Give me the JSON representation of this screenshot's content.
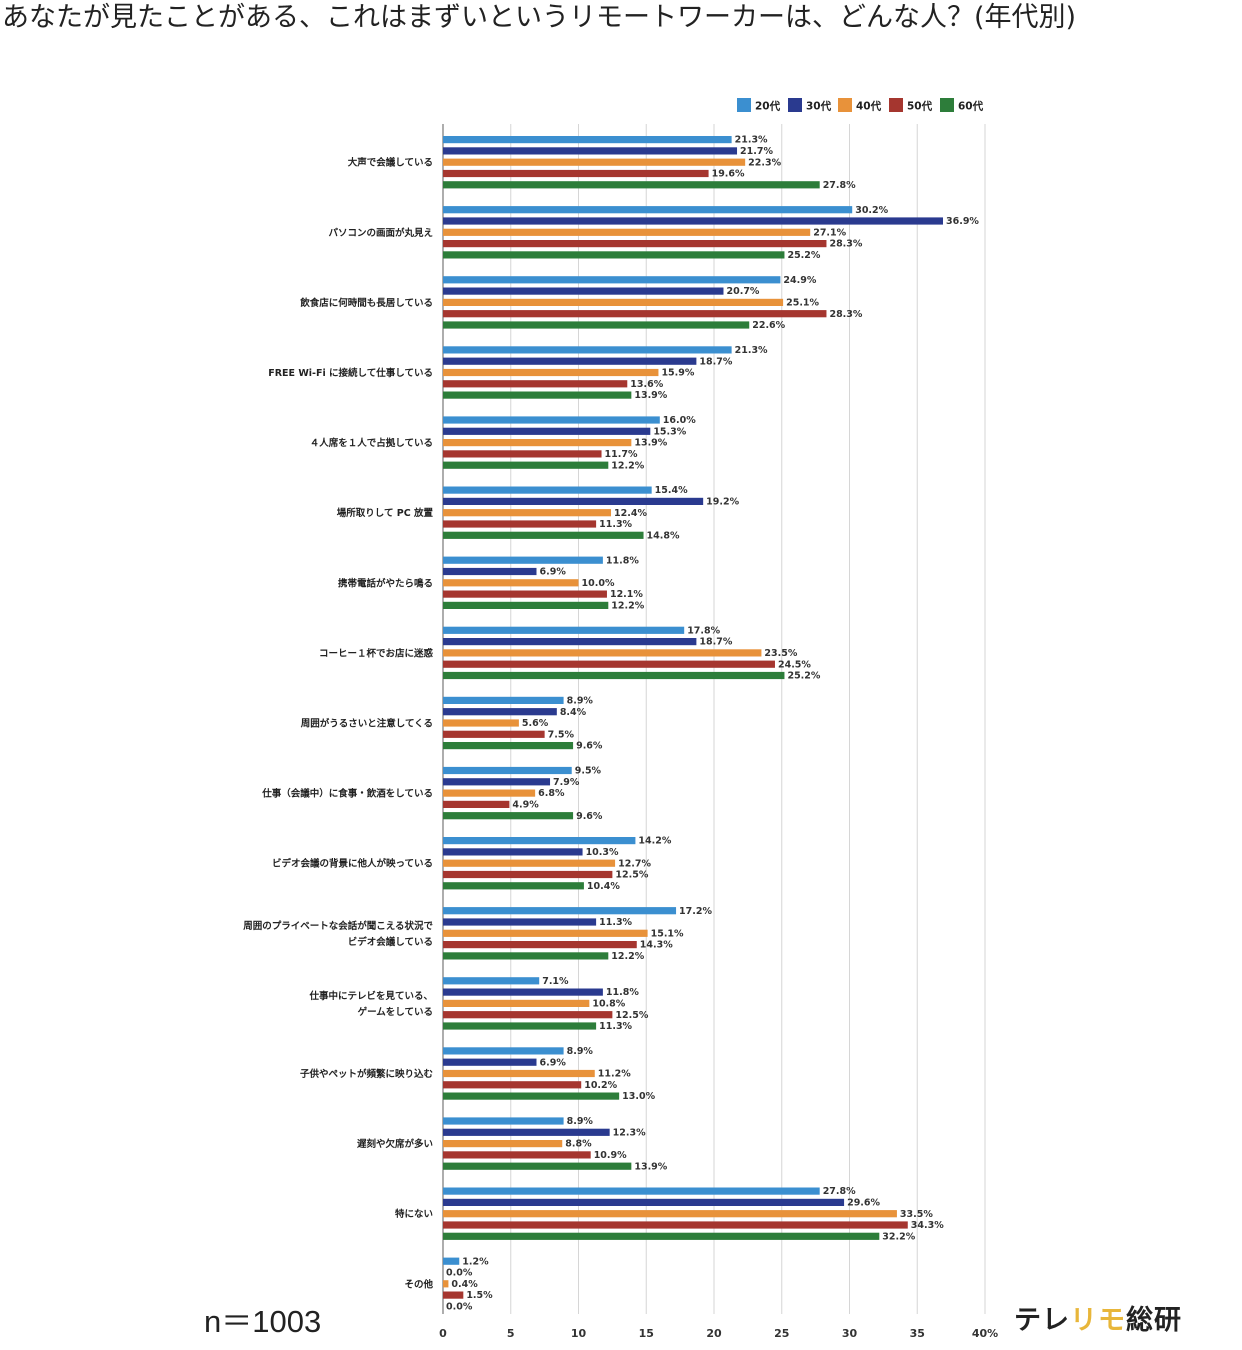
{
  "page_title": "あなたが見たことがある、これはまずいというリモートワーカーは、どんな人？(年代別)",
  "sample_size": "n＝1003",
  "brand": {
    "part1": "テレ",
    "part2": "リ",
    "part3": "モ",
    "part4": "総研"
  },
  "colors": {
    "20s": "#3b8fd0",
    "30s": "#2a3a8f",
    "40s": "#e8923a",
    "50s": "#a5362f",
    "60s": "#2d7d3a",
    "grid": "#d6d6d6",
    "axis": "#777777",
    "brand_accent": "#e8b63a"
  },
  "chart_data": {
    "type": "bar",
    "orientation": "horizontal",
    "title": "あなたが見たことがある、これはまずいというリモートワーカーは、どんな人？(年代別)",
    "xlabel": "",
    "ylabel": "",
    "xlim": [
      0,
      40
    ],
    "x_ticks": [
      "0",
      "5",
      "10",
      "15",
      "20",
      "25",
      "30",
      "35",
      "40%"
    ],
    "grid": true,
    "legend_position": "top-right",
    "categories": [
      [
        "大声で会議している"
      ],
      [
        "パソコンの画面が丸見え"
      ],
      [
        "飲食店に何時間も長居している"
      ],
      [
        "FREE Wi-Fi に接続して仕事している"
      ],
      [
        "４人席を１人で占拠している"
      ],
      [
        "場所取りして PC 放置"
      ],
      [
        "携帯電話がやたら鳴る"
      ],
      [
        "コーヒー１杯でお店に迷惑"
      ],
      [
        "周囲がうるさいと注意してくる"
      ],
      [
        "仕事（会議中）に食事・飲酒をしている"
      ],
      [
        "ビデオ会議の背景に他人が映っている"
      ],
      [
        "周囲のプライベートな会話が聞こえる状況で",
        "ビデオ会議している"
      ],
      [
        "仕事中にテレビを見ている、",
        "ゲームをしている"
      ],
      [
        "子供やペットが頻繁に映り込む"
      ],
      [
        "遅刻や欠席が多い"
      ],
      [
        "特にない"
      ],
      [
        "その他"
      ]
    ],
    "series": [
      {
        "name": "20代",
        "values": [
          21.3,
          30.2,
          24.9,
          21.3,
          16.0,
          15.4,
          11.8,
          17.8,
          8.9,
          9.5,
          14.2,
          17.2,
          7.1,
          8.9,
          8.9,
          27.8,
          1.2
        ]
      },
      {
        "name": "30代",
        "values": [
          21.7,
          36.9,
          20.7,
          18.7,
          15.3,
          19.2,
          6.9,
          18.7,
          8.4,
          7.9,
          10.3,
          11.3,
          11.8,
          6.9,
          12.3,
          29.6,
          0.0
        ]
      },
      {
        "name": "40代",
        "values": [
          22.3,
          27.1,
          25.1,
          15.9,
          13.9,
          12.4,
          10.0,
          23.5,
          5.6,
          6.8,
          12.7,
          15.1,
          10.8,
          11.2,
          8.8,
          33.5,
          0.4
        ]
      },
      {
        "name": "50代",
        "values": [
          19.6,
          28.3,
          28.3,
          13.6,
          11.7,
          11.3,
          12.1,
          24.5,
          7.5,
          4.9,
          12.5,
          14.3,
          12.5,
          10.2,
          10.9,
          34.3,
          1.5
        ]
      },
      {
        "name": "60代",
        "values": [
          27.8,
          25.2,
          22.6,
          13.9,
          12.2,
          14.8,
          12.2,
          25.2,
          9.6,
          9.6,
          10.4,
          12.2,
          11.3,
          13.0,
          13.9,
          32.2,
          0.0
        ]
      }
    ]
  }
}
